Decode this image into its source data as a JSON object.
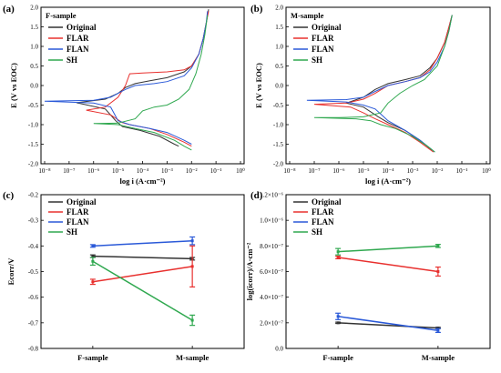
{
  "colors": {
    "Original": "#333333",
    "FLAR": "#e8302e",
    "FLAN": "#2a59d8",
    "SH": "#2fa84f"
  },
  "series_names": [
    "Original",
    "FLAR",
    "FLAN",
    "SH"
  ],
  "chart_data": [
    {
      "panel": "(a)",
      "type": "line",
      "annotation": "F-sample",
      "xlabel": "log i (A·cm⁻²)",
      "ylabel": "E (V vs EOC)",
      "xscale": "log",
      "xlim": [
        1e-08,
        1
      ],
      "ylim": [
        -2.0,
        2.0
      ],
      "xticks": [
        "10⁻⁸",
        "10⁻⁷",
        "10⁻⁶",
        "10⁻⁵",
        "10⁻⁴",
        "10⁻³",
        "10⁻²",
        "10⁻¹",
        "10⁰"
      ],
      "yticks": [
        "-2.0",
        "-1.5",
        "-1.0",
        "-0.5",
        "0.0",
        "0.5",
        "1.0",
        "1.5",
        "2.0"
      ],
      "legend": "top-left",
      "series": [
        {
          "name": "Original",
          "ecorr": -0.44,
          "icorr": 2e-07,
          "anodic": [
            [
              2e-07,
              -0.44
            ],
            [
              3e-06,
              -0.35
            ],
            [
              1e-05,
              -0.2
            ],
            [
              2e-05,
              -0.05
            ],
            [
              5e-05,
              0.05
            ],
            [
              0.0002,
              0.12
            ],
            [
              0.001,
              0.2
            ],
            [
              0.005,
              0.35
            ],
            [
              0.01,
              0.5
            ],
            [
              0.02,
              0.8
            ],
            [
              0.03,
              1.2
            ],
            [
              0.04,
              1.6
            ],
            [
              0.05,
              1.95
            ]
          ],
          "cathodic": [
            [
              2e-07,
              -0.44
            ],
            [
              3e-06,
              -0.6
            ],
            [
              8e-06,
              -0.9
            ],
            [
              1.5e-05,
              -1.05
            ],
            [
              8e-05,
              -1.15
            ],
            [
              0.0005,
              -1.3
            ],
            [
              0.002,
              -1.5
            ],
            [
              0.003,
              -1.55
            ]
          ]
        },
        {
          "name": "FLAR",
          "ecorr": -0.63,
          "icorr": 5e-07,
          "anodic": [
            [
              5e-07,
              -0.63
            ],
            [
              3e-06,
              -0.55
            ],
            [
              1e-05,
              -0.3
            ],
            [
              2e-05,
              0.0
            ],
            [
              3e-05,
              0.3
            ],
            [
              0.0001,
              0.32
            ],
            [
              0.001,
              0.35
            ],
            [
              0.005,
              0.4
            ],
            [
              0.01,
              0.5
            ],
            [
              0.02,
              0.8
            ],
            [
              0.03,
              1.2
            ],
            [
              0.04,
              1.6
            ],
            [
              0.05,
              1.9
            ]
          ],
          "cathodic": [
            [
              5e-07,
              -0.63
            ],
            [
              5e-06,
              -0.75
            ],
            [
              1.5e-05,
              -0.95
            ],
            [
              3e-05,
              -1.0
            ],
            [
              0.0002,
              -1.1
            ],
            [
              0.001,
              -1.25
            ],
            [
              0.005,
              -1.45
            ],
            [
              0.01,
              -1.55
            ]
          ]
        },
        {
          "name": "FLAN",
          "ecorr": -0.4,
          "icorr": 1e-08,
          "anodic": [
            [
              1e-08,
              -0.4
            ],
            [
              1e-06,
              -0.38
            ],
            [
              5e-06,
              -0.3
            ],
            [
              1e-05,
              -0.2
            ],
            [
              2e-05,
              -0.1
            ],
            [
              5e-05,
              0.0
            ],
            [
              0.0003,
              0.05
            ],
            [
              0.001,
              0.1
            ],
            [
              0.005,
              0.25
            ],
            [
              0.01,
              0.45
            ],
            [
              0.02,
              0.8
            ],
            [
              0.03,
              1.2
            ],
            [
              0.04,
              1.6
            ],
            [
              0.045,
              1.9
            ]
          ],
          "cathodic": [
            [
              1e-08,
              -0.4
            ],
            [
              1e-06,
              -0.45
            ],
            [
              5e-06,
              -0.55
            ],
            [
              1e-05,
              -0.9
            ],
            [
              3e-05,
              -1.0
            ],
            [
              0.0002,
              -1.1
            ],
            [
              0.001,
              -1.2
            ],
            [
              0.005,
              -1.4
            ],
            [
              0.01,
              -1.5
            ]
          ]
        },
        {
          "name": "SH",
          "ecorr": -0.97,
          "icorr": 1e-06,
          "anodic": [
            [
              1e-06,
              -0.97
            ],
            [
              1e-05,
              -0.96
            ],
            [
              5e-05,
              -0.85
            ],
            [
              0.0001,
              -0.65
            ],
            [
              0.0003,
              -0.55
            ],
            [
              0.001,
              -0.5
            ],
            [
              0.003,
              -0.35
            ],
            [
              0.008,
              -0.1
            ],
            [
              0.015,
              0.3
            ],
            [
              0.025,
              0.8
            ],
            [
              0.035,
              1.3
            ],
            [
              0.045,
              1.8
            ]
          ],
          "cathodic": [
            [
              1e-06,
              -0.97
            ],
            [
              1e-05,
              -1.0
            ],
            [
              5e-05,
              -1.1
            ],
            [
              0.0003,
              -1.2
            ],
            [
              0.002,
              -1.4
            ],
            [
              0.005,
              -1.55
            ],
            [
              0.01,
              -1.65
            ]
          ]
        }
      ]
    },
    {
      "panel": "(b)",
      "type": "line",
      "annotation": "M-sample",
      "xlabel": "log i (A·cm⁻²)",
      "ylabel": "E (V vs EOC)",
      "xscale": "log",
      "xlim": [
        1e-08,
        1
      ],
      "ylim": [
        -2.0,
        2.0
      ],
      "xticks": [
        "10⁻⁸",
        "10⁻⁷",
        "10⁻⁶",
        "10⁻⁵",
        "10⁻⁴",
        "10⁻³",
        "10⁻²",
        "10⁻¹",
        "10⁰"
      ],
      "yticks": [
        "-2.0",
        "-1.5",
        "-1.0",
        "-0.5",
        "0.0",
        "0.5",
        "1.0",
        "1.5",
        "2.0"
      ],
      "legend": "top-left",
      "series": [
        {
          "name": "Original",
          "ecorr": -0.45,
          "icorr": 2e-06,
          "anodic": [
            [
              2e-06,
              -0.45
            ],
            [
              1e-05,
              -0.3
            ],
            [
              3e-05,
              -0.1
            ],
            [
              0.0001,
              0.05
            ],
            [
              0.0005,
              0.15
            ],
            [
              0.002,
              0.25
            ],
            [
              0.005,
              0.45
            ],
            [
              0.01,
              0.7
            ],
            [
              0.02,
              1.1
            ],
            [
              0.03,
              1.5
            ],
            [
              0.04,
              1.8
            ]
          ],
          "cathodic": [
            [
              2e-06,
              -0.45
            ],
            [
              1e-05,
              -0.55
            ],
            [
              4e-05,
              -0.8
            ],
            [
              0.0001,
              -0.95
            ],
            [
              0.0005,
              -1.15
            ],
            [
              0.002,
              -1.4
            ],
            [
              0.006,
              -1.65
            ]
          ]
        },
        {
          "name": "FLAR",
          "ecorr": -0.48,
          "icorr": 1e-07,
          "anodic": [
            [
              1e-07,
              -0.48
            ],
            [
              2e-06,
              -0.45
            ],
            [
              1e-05,
              -0.35
            ],
            [
              3e-05,
              -0.2
            ],
            [
              0.0001,
              0.0
            ],
            [
              0.0005,
              0.1
            ],
            [
              0.002,
              0.2
            ],
            [
              0.005,
              0.4
            ],
            [
              0.01,
              0.7
            ],
            [
              0.02,
              1.1
            ],
            [
              0.03,
              1.5
            ],
            [
              0.04,
              1.8
            ]
          ],
          "cathodic": [
            [
              1e-07,
              -0.48
            ],
            [
              3e-06,
              -0.55
            ],
            [
              1e-05,
              -0.7
            ],
            [
              3e-05,
              -0.85
            ],
            [
              0.0001,
              -1.0
            ],
            [
              0.0005,
              -1.2
            ],
            [
              0.002,
              -1.45
            ],
            [
              0.007,
              -1.7
            ]
          ]
        },
        {
          "name": "FLAN",
          "ecorr": -0.38,
          "icorr": 5e-08,
          "anodic": [
            [
              5e-08,
              -0.38
            ],
            [
              2e-06,
              -0.36
            ],
            [
              1e-05,
              -0.3
            ],
            [
              3e-05,
              -0.15
            ],
            [
              0.0001,
              0.0
            ],
            [
              0.0005,
              0.1
            ],
            [
              0.002,
              0.2
            ],
            [
              0.005,
              0.35
            ],
            [
              0.01,
              0.6
            ],
            [
              0.02,
              1.0
            ],
            [
              0.03,
              1.4
            ],
            [
              0.04,
              1.8
            ]
          ],
          "cathodic": [
            [
              5e-08,
              -0.38
            ],
            [
              2e-06,
              -0.42
            ],
            [
              1e-05,
              -0.5
            ],
            [
              3e-05,
              -0.6
            ],
            [
              0.0001,
              -0.9
            ],
            [
              0.0005,
              -1.15
            ],
            [
              0.002,
              -1.4
            ],
            [
              0.008,
              -1.7
            ]
          ]
        },
        {
          "name": "SH",
          "ecorr": -0.82,
          "icorr": 1e-07,
          "anodic": [
            [
              1e-07,
              -0.82
            ],
            [
              1e-06,
              -0.82
            ],
            [
              1e-05,
              -0.8
            ],
            [
              5e-05,
              -0.7
            ],
            [
              0.0001,
              -0.45
            ],
            [
              0.0003,
              -0.2
            ],
            [
              0.001,
              0.0
            ],
            [
              0.003,
              0.15
            ],
            [
              0.01,
              0.5
            ],
            [
              0.02,
              1.0
            ],
            [
              0.03,
              1.4
            ],
            [
              0.04,
              1.8
            ]
          ],
          "cathodic": [
            [
              1e-07,
              -0.82
            ],
            [
              5e-06,
              -0.85
            ],
            [
              2e-05,
              -0.9
            ],
            [
              5e-05,
              -1.0
            ],
            [
              0.0002,
              -1.1
            ],
            [
              0.001,
              -1.3
            ],
            [
              0.004,
              -1.55
            ],
            [
              0.008,
              -1.7
            ]
          ]
        }
      ]
    },
    {
      "panel": "(c)",
      "type": "line",
      "ylabel": "Ecorr/V",
      "categories": [
        "F-sample",
        "M-sample"
      ],
      "ylim": [
        -0.8,
        -0.2
      ],
      "yticks": [
        "-0.8",
        "-0.7",
        "-0.6",
        "-0.5",
        "-0.4",
        "-0.3",
        "-0.2"
      ],
      "legend": "top-left",
      "series": [
        {
          "name": "Original",
          "values": [
            -0.44,
            -0.45
          ],
          "errors": [
            0.005,
            0.005
          ]
        },
        {
          "name": "FLAR",
          "values": [
            -0.54,
            -0.48
          ],
          "errors": [
            0.01,
            0.08
          ]
        },
        {
          "name": "FLAN",
          "values": [
            -0.4,
            -0.38
          ],
          "errors": [
            0.005,
            0.015
          ]
        },
        {
          "name": "SH",
          "values": [
            -0.46,
            -0.69
          ],
          "errors": [
            0.015,
            0.02
          ]
        }
      ]
    },
    {
      "panel": "(d)",
      "type": "line",
      "ylabel": "log(icorr)/A·cm⁻²",
      "categories": [
        "F-sample",
        "M-sample"
      ],
      "ylim": [
        0,
        1.2e-06
      ],
      "yticks": [
        "0.0",
        "2.0×10⁻⁷",
        "4.0×10⁻⁷",
        "6.0×10⁻⁷",
        "8.0×10⁻⁷",
        "1.0×10⁻⁶",
        "1.2×10⁻⁶"
      ],
      "legend": "top-left",
      "series": [
        {
          "name": "Original",
          "values": [
            2e-07,
            1.6e-07
          ],
          "errors": [
            5e-09,
            5e-09
          ]
        },
        {
          "name": "FLAR",
          "values": [
            7.1e-07,
            6e-07
          ],
          "errors": [
            1e-08,
            3.5e-08
          ]
        },
        {
          "name": "FLAN",
          "values": [
            2.5e-07,
            1.4e-07
          ],
          "errors": [
            2.5e-08,
            1.5e-08
          ]
        },
        {
          "name": "SH",
          "values": [
            7.55e-07,
            8e-07
          ],
          "errors": [
            2.5e-08,
            1.2e-08
          ]
        }
      ]
    }
  ]
}
